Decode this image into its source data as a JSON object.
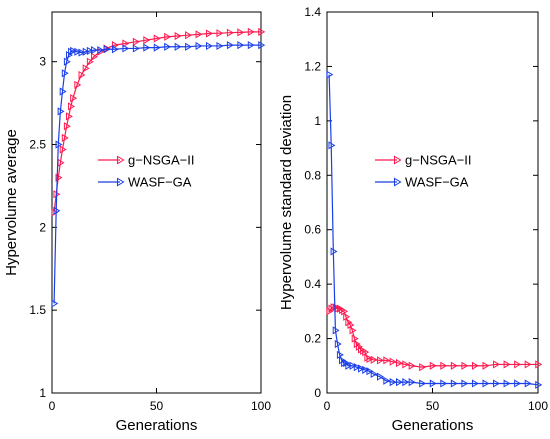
{
  "chart_data": [
    {
      "type": "line",
      "xlabel": "Generations",
      "ylabel": "Hypervolume average",
      "xlim": [
        0,
        100
      ],
      "ylim": [
        1,
        3.3
      ],
      "xticks": [
        "0",
        "50",
        "100"
      ],
      "yticks": [
        "1",
        "1.5",
        "2",
        "2.5",
        "3"
      ],
      "legend_position": "center",
      "series": [
        {
          "name": "g−NSGA−II",
          "color": "#ff1a4f",
          "marker": "triangle-right",
          "x": [
            1,
            2,
            3,
            4,
            5,
            6,
            7,
            8,
            9,
            10,
            12,
            14,
            16,
            18,
            20,
            23,
            26,
            30,
            35,
            40,
            45,
            50,
            55,
            60,
            65,
            70,
            75,
            80,
            85,
            90,
            95,
            100
          ],
          "y": [
            2.09,
            2.2,
            2.3,
            2.39,
            2.47,
            2.54,
            2.61,
            2.67,
            2.73,
            2.78,
            2.86,
            2.92,
            2.96,
            3.0,
            3.03,
            3.06,
            3.08,
            3.1,
            3.11,
            3.12,
            3.13,
            3.14,
            3.15,
            3.155,
            3.16,
            3.165,
            3.17,
            3.172,
            3.175,
            3.177,
            3.18,
            3.18
          ]
        },
        {
          "name": "WASF−GA",
          "color": "#1a3fe8",
          "marker": "triangle-right",
          "x": [
            1,
            2,
            3,
            4,
            5,
            6,
            7,
            8,
            9,
            10,
            12,
            14,
            16,
            18,
            20,
            23,
            26,
            30,
            35,
            40,
            45,
            50,
            55,
            60,
            65,
            70,
            75,
            80,
            85,
            90,
            95,
            100
          ],
          "y": [
            1.54,
            2.1,
            2.5,
            2.7,
            2.82,
            2.93,
            3.0,
            3.04,
            3.06,
            3.065,
            3.06,
            3.055,
            3.06,
            3.065,
            3.07,
            3.07,
            3.075,
            3.075,
            3.08,
            3.08,
            3.085,
            3.085,
            3.09,
            3.09,
            3.09,
            3.095,
            3.095,
            3.095,
            3.1,
            3.1,
            3.1,
            3.1
          ]
        }
      ]
    },
    {
      "type": "line",
      "xlabel": "Generations",
      "ylabel": "Hypervolume standard deviation",
      "xlim": [
        0,
        100
      ],
      "ylim": [
        0,
        1.4
      ],
      "xticks": [
        "0",
        "50",
        "100"
      ],
      "yticks": [
        "0",
        "0.2",
        "0.4",
        "0.6",
        "0.8",
        "1",
        "1.2",
        "1.4"
      ],
      "legend_position": "top-right",
      "series": [
        {
          "name": "g−NSGA−II",
          "color": "#ff1a4f",
          "marker": "triangle-right",
          "x": [
            1,
            2,
            3,
            4,
            5,
            6,
            7,
            8,
            9,
            10,
            11,
            12,
            13,
            14,
            15,
            16,
            17,
            18,
            19,
            20,
            22,
            25,
            28,
            31,
            34,
            37,
            40,
            45,
            50,
            55,
            60,
            65,
            70,
            75,
            80,
            85,
            90,
            95,
            100
          ],
          "y": [
            0.3,
            0.31,
            0.315,
            0.315,
            0.31,
            0.31,
            0.305,
            0.3,
            0.28,
            0.26,
            0.25,
            0.23,
            0.2,
            0.18,
            0.17,
            0.16,
            0.155,
            0.15,
            0.13,
            0.125,
            0.122,
            0.12,
            0.12,
            0.115,
            0.11,
            0.105,
            0.1,
            0.095,
            0.1,
            0.1,
            0.1,
            0.1,
            0.1,
            0.1,
            0.105,
            0.105,
            0.105,
            0.105,
            0.105
          ]
        },
        {
          "name": "WASF−GA",
          "color": "#1a3fe8",
          "marker": "triangle-right",
          "x": [
            1,
            2,
            3,
            4,
            5,
            6,
            7,
            8,
            9,
            10,
            12,
            14,
            16,
            18,
            20,
            22,
            25,
            28,
            31,
            34,
            37,
            40,
            45,
            50,
            55,
            60,
            65,
            70,
            75,
            80,
            85,
            90,
            95,
            100
          ],
          "y": [
            1.17,
            0.91,
            0.52,
            0.23,
            0.18,
            0.14,
            0.12,
            0.11,
            0.11,
            0.1,
            0.1,
            0.095,
            0.09,
            0.085,
            0.08,
            0.07,
            0.06,
            0.045,
            0.04,
            0.04,
            0.04,
            0.04,
            0.035,
            0.035,
            0.035,
            0.035,
            0.035,
            0.035,
            0.035,
            0.035,
            0.035,
            0.035,
            0.035,
            0.03
          ]
        }
      ]
    }
  ]
}
